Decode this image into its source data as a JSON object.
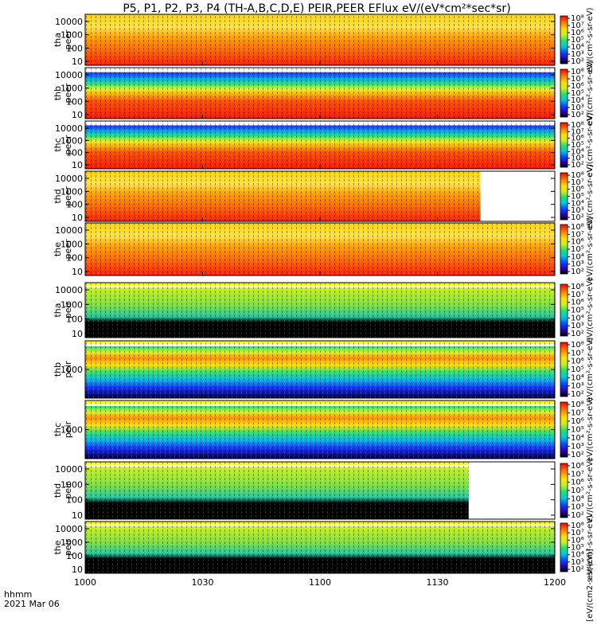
{
  "chart_data": {
    "type": "heatmap",
    "title": "P5, P1, P2, P3, P4 (TH-A,B,C,D,E) PEIR,PEER EFlux eV/(eV*cm²*sec*sr)",
    "x_axis": {
      "range": [
        "1000",
        "1200"
      ],
      "tick_labels": [
        "1000",
        "1030",
        "1100",
        "1130",
        "1200"
      ],
      "label_line1": "hhmm",
      "label_line2": "2021 Mar 06"
    },
    "y_scale": "log",
    "colorbar": {
      "scale": "log",
      "tick_base": "10",
      "tick_labels_full": [
        "10²",
        "10³",
        "10⁴",
        "10⁵",
        "10⁶",
        "10⁷",
        "10⁸"
      ],
      "tick_labels_ion": [
        "10²",
        "10³",
        "10⁴",
        "10⁵",
        "10⁶",
        "10⁷",
        "10⁸"
      ],
      "label_full": "eV/(cm²-s-sr-eV)",
      "label_units": "[eV/(cm2-s-sr-eV)]"
    },
    "panels": [
      {
        "probe": "tha",
        "species": "peer",
        "ylabel1": "tha",
        "ylabel2": "peer",
        "y_ticks": [
          "10",
          "100",
          "1000",
          "10000"
        ],
        "level": "high",
        "data_end_hhmm": "1200"
      },
      {
        "probe": "thb",
        "species": "peer",
        "ylabel1": "thb",
        "ylabel2": "peer",
        "y_ticks": [
          "10",
          "100",
          "1000",
          "10000"
        ],
        "level": "high",
        "data_end_hhmm": "1200"
      },
      {
        "probe": "thc",
        "species": "peer",
        "ylabel1": "thc",
        "ylabel2": "peer",
        "y_ticks": [
          "10",
          "100",
          "1000",
          "10000"
        ],
        "level": "high",
        "data_end_hhmm": "1200"
      },
      {
        "probe": "thd",
        "species": "peer",
        "ylabel1": "thd",
        "ylabel2": "peer",
        "y_ticks": [
          "10",
          "100",
          "1000",
          "10000"
        ],
        "level": "high",
        "data_end_hhmm": "1141"
      },
      {
        "probe": "the",
        "species": "peer",
        "ylabel1": "the",
        "ylabel2": "peer",
        "y_ticks": [
          "10",
          "100",
          "1000",
          "10000"
        ],
        "level": "high",
        "data_end_hhmm": "1200"
      },
      {
        "probe": "tha",
        "species": "peir",
        "ylabel1": "tha",
        "ylabel2": "peir",
        "y_ticks": [
          "10",
          "100",
          "1000",
          "10000"
        ],
        "level": "low",
        "data_end_hhmm": "1200"
      },
      {
        "probe": "thb",
        "species": "peir",
        "ylabel1": "thb",
        "ylabel2": "peir",
        "y_ticks": [
          "1000"
        ],
        "level": "mid",
        "data_end_hhmm": "1200"
      },
      {
        "probe": "thc",
        "species": "peir",
        "ylabel1": "thc",
        "ylabel2": "peir",
        "y_ticks": [
          "1000"
        ],
        "level": "mid",
        "data_end_hhmm": "1200"
      },
      {
        "probe": "thd",
        "species": "peir",
        "ylabel1": "thd",
        "ylabel2": "peir",
        "y_ticks": [
          "10",
          "100",
          "1000",
          "10000"
        ],
        "level": "low",
        "data_end_hhmm": "1138"
      },
      {
        "probe": "the",
        "species": "peir",
        "ylabel1": "the",
        "ylabel2": "peir",
        "y_ticks": [
          "10",
          "100",
          "1000",
          "10000"
        ],
        "level": "low",
        "data_end_hhmm": "1200"
      }
    ]
  }
}
